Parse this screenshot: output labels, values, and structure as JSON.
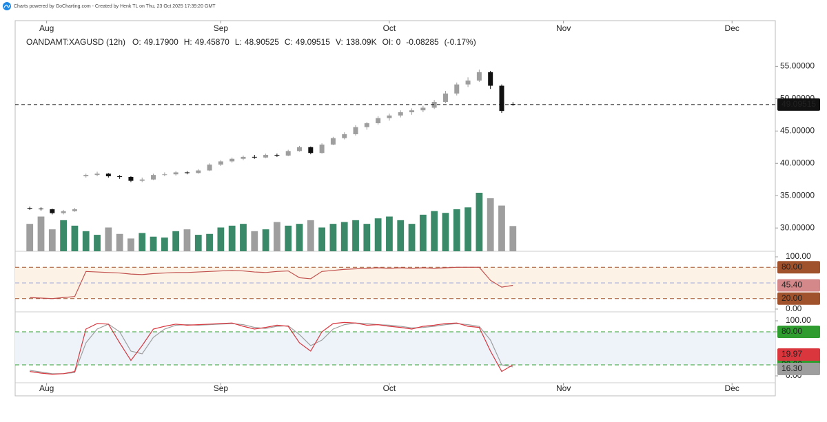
{
  "attribution": "Charts powered by GoCharting.com - Created by Henk TL on Thu, 23 Oct 2025 17:39:20 GMT",
  "chart_data": {
    "type": "candlestick",
    "legend": {
      "symbol": "OANDAMT:XAGUSD (12h)",
      "fields": [
        {
          "key": "O:",
          "value": "49.17900"
        },
        {
          "key": "H:",
          "value": "49.45870"
        },
        {
          "key": "L:",
          "value": "48.90525"
        },
        {
          "key": "C:",
          "value": "49.09515"
        },
        {
          "key": "V:",
          "value": "138.09K"
        },
        {
          "key": "OI:",
          "value": "0"
        }
      ],
      "change": "-0.08285",
      "change_pct": "(-0.17%)"
    },
    "xlim": [
      207.4,
      342.7
    ],
    "xticks": [
      {
        "value": 213,
        "label": "Aug"
      },
      {
        "value": 244,
        "label": "Sep"
      },
      {
        "value": 274,
        "label": "Oct"
      },
      {
        "value": 305,
        "label": "Nov"
      },
      {
        "value": 335,
        "label": "Dec"
      }
    ],
    "ylim": [
      26.4,
      61
    ],
    "yticks": [
      {
        "value": 30,
        "label": "30.00000"
      },
      {
        "value": 35,
        "label": "35.00000"
      },
      {
        "value": 40,
        "label": "40.00000"
      },
      {
        "value": 45,
        "label": "45.00000"
      },
      {
        "value": 50,
        "label": "50.00000"
      },
      {
        "value": 55,
        "label": "55.00000"
      }
    ],
    "last_label": "49.09515",
    "up_color": "#9e9e9e",
    "down_color": "#111111",
    "x": [
      210,
      212,
      214,
      216,
      218,
      220,
      222,
      224,
      226,
      228,
      230,
      232,
      234,
      236,
      238,
      240,
      242,
      244,
      246,
      248,
      250,
      252,
      254,
      256,
      258,
      260,
      262,
      264,
      266,
      268,
      270,
      272,
      274,
      276,
      278,
      280,
      282,
      284,
      286,
      288,
      290,
      292,
      294,
      296
    ],
    "candles": [
      [
        33.1,
        33.3,
        32.8,
        33.0
      ],
      [
        33.0,
        33.2,
        32.7,
        32.9
      ],
      [
        32.9,
        33.0,
        32.1,
        32.3
      ],
      [
        32.3,
        32.8,
        32.1,
        32.6
      ],
      [
        32.6,
        33.1,
        32.5,
        32.9
      ],
      [
        38.0,
        38.4,
        37.8,
        38.2
      ],
      [
        38.2,
        38.7,
        38.0,
        38.4
      ],
      [
        38.4,
        38.5,
        37.8,
        38.0
      ],
      [
        38.0,
        38.2,
        37.6,
        37.9
      ],
      [
        37.9,
        38.0,
        37.1,
        37.3
      ],
      [
        37.3,
        37.8,
        37.1,
        37.5
      ],
      [
        37.5,
        38.4,
        37.4,
        38.2
      ],
      [
        38.2,
        38.6,
        38.0,
        38.3
      ],
      [
        38.3,
        38.8,
        38.1,
        38.6
      ],
      [
        38.6,
        38.8,
        38.3,
        38.5
      ],
      [
        38.5,
        39.1,
        38.4,
        38.9
      ],
      [
        38.9,
        40.0,
        38.8,
        39.8
      ],
      [
        39.8,
        40.5,
        39.6,
        40.3
      ],
      [
        40.3,
        40.9,
        40.1,
        40.7
      ],
      [
        40.7,
        41.2,
        40.5,
        41.0
      ],
      [
        41.0,
        41.3,
        40.7,
        40.9
      ],
      [
        40.9,
        41.5,
        40.8,
        41.3
      ],
      [
        41.3,
        41.5,
        41.0,
        41.2
      ],
      [
        41.2,
        42.1,
        41.1,
        41.9
      ],
      [
        41.9,
        42.7,
        41.8,
        42.5
      ],
      [
        42.5,
        42.6,
        41.4,
        41.6
      ],
      [
        41.6,
        43.1,
        41.5,
        42.9
      ],
      [
        42.9,
        44.1,
        42.8,
        43.9
      ],
      [
        43.9,
        44.8,
        43.7,
        44.5
      ],
      [
        44.5,
        45.9,
        44.3,
        45.6
      ],
      [
        45.6,
        46.4,
        45.2,
        46.2
      ],
      [
        46.2,
        47.3,
        46.0,
        47.0
      ],
      [
        47.0,
        47.7,
        46.6,
        47.4
      ],
      [
        47.4,
        48.2,
        47.1,
        47.9
      ],
      [
        47.9,
        48.5,
        47.5,
        48.2
      ],
      [
        48.2,
        48.9,
        47.9,
        48.6
      ],
      [
        48.6,
        49.8,
        48.4,
        49.5
      ],
      [
        49.5,
        51.2,
        49.3,
        50.8
      ],
      [
        50.8,
        52.5,
        50.5,
        52.2
      ],
      [
        52.2,
        53.3,
        51.8,
        52.8
      ],
      [
        52.8,
        54.5,
        52.6,
        54.1
      ],
      [
        54.1,
        54.3,
        51.5,
        52.0
      ],
      [
        52.0,
        52.2,
        47.8,
        48.1
      ],
      [
        49.179,
        49.4587,
        48.90525,
        49.09515
      ]
    ],
    "volume": {
      "up_color": "#3a8a6a",
      "down_color": "#9e9e9e",
      "values": [
        150,
        190,
        120,
        170,
        140,
        110,
        90,
        130,
        95,
        70,
        100,
        80,
        75,
        110,
        120,
        90,
        95,
        130,
        140,
        150,
        110,
        120,
        160,
        140,
        150,
        170,
        130,
        150,
        160,
        170,
        150,
        180,
        190,
        170,
        150,
        200,
        220,
        210,
        230,
        240,
        320,
        290,
        250,
        138.09
      ]
    },
    "rsi": {
      "color": "#c0504d",
      "band_color": "#a0522d",
      "fill": "#fdf2e6",
      "mid_color": "#9fa8da",
      "midline": 50,
      "bands": [
        20,
        80
      ],
      "ylim": [
        -2.7,
        109.3
      ],
      "yticks": [
        {
          "value": 0,
          "label": "0.00"
        },
        {
          "value": 20,
          "label": "20.00"
        },
        {
          "value": 80,
          "label": "80.00"
        },
        {
          "value": 100,
          "label": "100.00"
        }
      ],
      "values": [
        22,
        21,
        20,
        22,
        24,
        72,
        71,
        70,
        69,
        67,
        66,
        68,
        69,
        70,
        70,
        71,
        72,
        73,
        74,
        73,
        71,
        70,
        72,
        73,
        60,
        58,
        72,
        74,
        76,
        77,
        78,
        79,
        78,
        79,
        78,
        79,
        78,
        79,
        80,
        80,
        80,
        55,
        42,
        45.4
      ],
      "last_label": "45.40",
      "last_color": "#d4888a"
    },
    "stoch": {
      "band_color": "#2e9c2e",
      "fill": "#eef3fa",
      "bands": [
        20,
        80
      ],
      "ylim": [
        -12.5,
        112.5
      ],
      "yticks": [
        {
          "value": 0,
          "label": "0.00"
        },
        {
          "value": 20,
          "label": "20.00"
        },
        {
          "value": 80,
          "label": "80.00"
        },
        {
          "value": 100,
          "label": "100.00"
        }
      ],
      "series": [
        {
          "color": "#d9363e",
          "last_label": "19.97",
          "values": [
            8,
            5,
            3,
            4,
            8,
            85,
            95,
            94,
            60,
            28,
            55,
            85,
            90,
            94,
            92,
            93,
            94,
            95,
            96,
            90,
            85,
            88,
            92,
            90,
            60,
            45,
            80,
            95,
            97,
            96,
            92,
            93,
            90,
            88,
            85,
            90,
            92,
            95,
            96,
            90,
            88,
            45,
            8,
            19.97
          ]
        },
        {
          "color": "#9e9e9e",
          "last_label": "16.30",
          "values": [
            10,
            7,
            4,
            4,
            6,
            60,
            85,
            94,
            80,
            45,
            40,
            70,
            85,
            92,
            93,
            92,
            93,
            94,
            95,
            93,
            88,
            86,
            90,
            91,
            75,
            55,
            65,
            85,
            93,
            96,
            95,
            93,
            92,
            90,
            87,
            88,
            90,
            93,
            95,
            93,
            90,
            65,
            20,
            16.3
          ]
        }
      ]
    }
  }
}
